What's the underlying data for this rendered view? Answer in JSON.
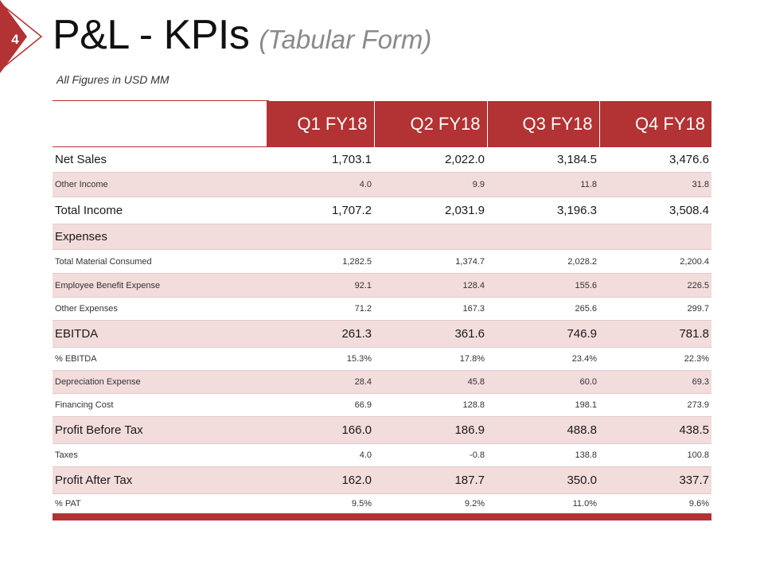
{
  "slide": {
    "number": "4",
    "title": "P&L - KPIs",
    "subtitle": "(Tabular Form)",
    "units_note": "All Figures in USD MM",
    "accent_color": "#b33233",
    "shade_color": "#f3dcdc"
  },
  "table": {
    "columns": [
      "Q1 FY18",
      "Q2 FY18",
      "Q3 FY18",
      "Q4 FY18"
    ],
    "rows": [
      {
        "label": "Net Sales",
        "values": [
          "1,703.1",
          "2,022.0",
          "3,184.5",
          "3,476.6"
        ]
      },
      {
        "label": "Other Income",
        "values": [
          "4.0",
          "9.9",
          "11.8",
          "31.8"
        ]
      },
      {
        "label": "Total Income",
        "values": [
          "1,707.2",
          "2,031.9",
          "3,196.3",
          "3,508.4"
        ]
      },
      {
        "label": "Expenses",
        "values": [
          "",
          "",
          "",
          ""
        ]
      },
      {
        "label": "Total Material Consumed",
        "values": [
          "1,282.5",
          "1,374.7",
          "2,028.2",
          "2,200.4"
        ]
      },
      {
        "label": "Employee Benefit Expense",
        "values": [
          "92.1",
          "128.4",
          "155.6",
          "226.5"
        ]
      },
      {
        "label": "Other Expenses",
        "values": [
          "71.2",
          "167.3",
          "265.6",
          "299.7"
        ]
      },
      {
        "label": "EBITDA",
        "values": [
          "261.3",
          "361.6",
          "746.9",
          "781.8"
        ]
      },
      {
        "label": "% EBITDA",
        "values": [
          "15.3%",
          "17.8%",
          "23.4%",
          "22.3%"
        ]
      },
      {
        "label": "Depreciation Expense",
        "values": [
          "28.4",
          "45.8",
          "60.0",
          "69.3"
        ]
      },
      {
        "label": "Financing Cost",
        "values": [
          "66.9",
          "128.8",
          "198.1",
          "273.9"
        ]
      },
      {
        "label": "Profit Before Tax",
        "values": [
          "166.0",
          "186.9",
          "488.8",
          "438.5"
        ]
      },
      {
        "label": "Taxes",
        "values": [
          "4.0",
          "-0.8",
          "138.8",
          "100.8"
        ]
      },
      {
        "label": "Profit After Tax",
        "values": [
          "162.0",
          "187.7",
          "350.0",
          "337.7"
        ]
      },
      {
        "label": "% PAT",
        "values": [
          "9.5%",
          "9.2%",
          "11.0%",
          "9.6%"
        ]
      }
    ]
  }
}
